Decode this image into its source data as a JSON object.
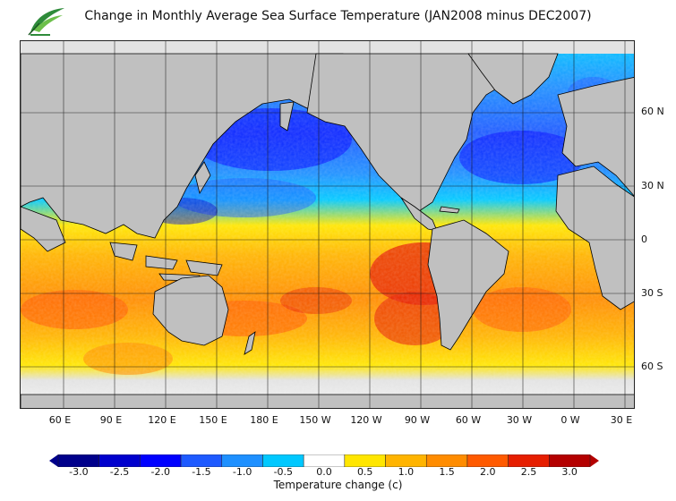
{
  "header": {
    "title": "Change in Monthly Average Sea Surface Temperature (JAN2008 minus DEC2007)",
    "logo_icon": "leaf-logo-icon"
  },
  "map": {
    "lat_labels": [
      "60 N",
      "30 N",
      "0",
      "30 S",
      "60 S"
    ],
    "lon_labels": [
      "60 E",
      "90 E",
      "120 E",
      "150 E",
      "180 E",
      "150 W",
      "120 W",
      "90 W",
      "60 W",
      "30 W",
      "0 W",
      "30 E"
    ],
    "land_color": "#c0c0c0",
    "ice_color": "#e2e2e2",
    "coast_color": "#000000"
  },
  "colorbar": {
    "ticks": [
      "-3.0",
      "-2.5",
      "-2.0",
      "-1.5",
      "-1.0",
      "-0.5",
      "0.0",
      "0.5",
      "1.0",
      "1.5",
      "2.0",
      "2.5",
      "3.0"
    ],
    "colors": [
      "#00008b",
      "#0000cd",
      "#0000ff",
      "#1e5aff",
      "#1e90ff",
      "#00c8ff",
      "#ffffff",
      "#ffe600",
      "#ffb400",
      "#ff8c00",
      "#ff5a00",
      "#e61e00",
      "#b40000"
    ],
    "title": "Temperature change  (c)"
  }
}
